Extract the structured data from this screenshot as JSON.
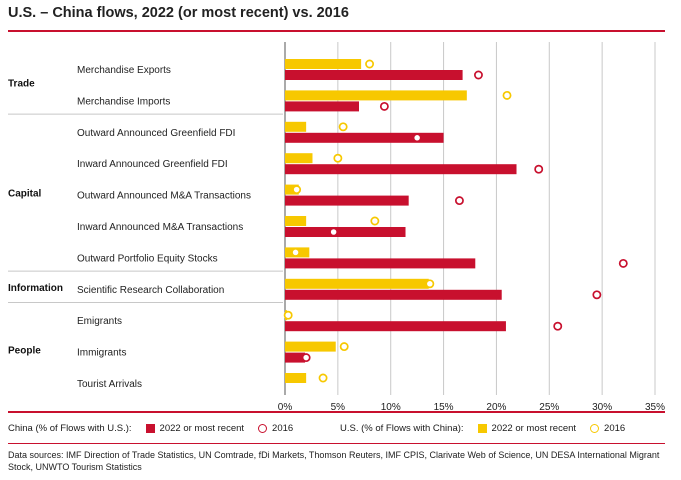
{
  "title": "U.S. – China flows, 2022 (or most recent) vs. 2016",
  "colors": {
    "red": "#c8102e",
    "yellow": "#f7c800",
    "grid": "#c8c8c8"
  },
  "legend": {
    "china_label": "China (% of Flows with U.S.):",
    "us_label": "U.S. (% of Flows with China):",
    "recent": "2022 or most recent",
    "y2016": "2016"
  },
  "sources": "Data sources: IMF Direction of Trade Statistics, UN Comtrade, fDi Markets, Thomson Reuters, IMF CPIS, Clarivate Web of Science, UN DESA International Migrant Stock, UNWTO Tourism Statistics",
  "chart_data": {
    "type": "bar",
    "orientation": "horizontal",
    "xlim": [
      0,
      35
    ],
    "xticks": [
      "0%",
      "5%",
      "10%",
      "15%",
      "20%",
      "25%",
      "30%",
      "35%"
    ],
    "grid": true,
    "groups": [
      {
        "name": "Trade",
        "categories": [
          "Merchandise Exports",
          "Merchandise Imports"
        ]
      },
      {
        "name": "Capital",
        "categories": [
          "Outward Announced Greenfield FDI",
          "Inward Announced Greenfield FDI",
          "Outward Announced M&A Transactions",
          "Inward Announced M&A Transactions",
          "Outward Portfolio Equity Stocks"
        ]
      },
      {
        "name": "Information",
        "categories": [
          "Scientific Research Collaboration"
        ]
      },
      {
        "name": "People",
        "categories": [
          "Emigrants",
          "Immigrants",
          "Tourist Arrivals"
        ]
      }
    ],
    "categories": [
      "Merchandise Exports",
      "Merchandise Imports",
      "Outward Announced Greenfield FDI",
      "Inward Announced Greenfield FDI",
      "Outward Announced M&A Transactions",
      "Inward Announced M&A Transactions",
      "Outward Portfolio Equity Stocks",
      "Scientific Research Collaboration",
      "Emigrants",
      "Immigrants",
      "Tourist Arrivals"
    ],
    "series": [
      {
        "name": "U.S. (% of Flows with China): 2022 or most recent",
        "kind": "bar",
        "values": [
          7.2,
          17.2,
          2.0,
          2.6,
          1.3,
          2.0,
          2.3,
          13.6,
          0.2,
          4.8,
          2.0
        ]
      },
      {
        "name": "U.S. (% of Flows with China): 2016",
        "kind": "marker",
        "values": [
          8.0,
          21.0,
          5.5,
          5.0,
          1.1,
          8.5,
          1.0,
          13.7,
          0.3,
          5.6,
          3.6
        ]
      },
      {
        "name": "China (% of Flows with U.S.): 2022 or most recent",
        "kind": "bar",
        "values": [
          16.8,
          7.0,
          15.0,
          21.9,
          11.7,
          11.4,
          18.0,
          20.5,
          20.9,
          1.9,
          null
        ]
      },
      {
        "name": "China (% of Flows with U.S.): 2016",
        "kind": "marker",
        "values": [
          18.3,
          9.4,
          12.5,
          24.0,
          16.5,
          4.6,
          32.0,
          29.5,
          25.8,
          2.0,
          null
        ]
      }
    ]
  }
}
